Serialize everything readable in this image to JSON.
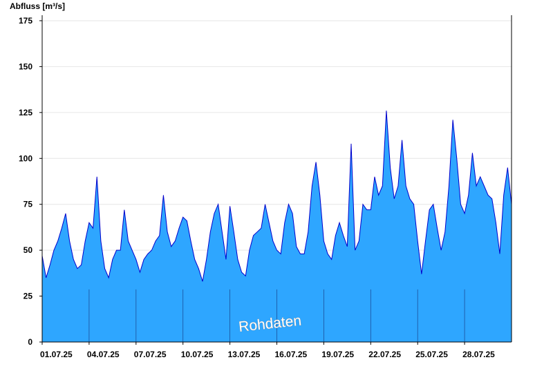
{
  "chart_data": {
    "type": "area",
    "y_label": "Abfluss [m³/s]",
    "annotation": "Rohdaten",
    "x": [
      1,
      1.25,
      1.5,
      1.75,
      2,
      2.25,
      2.5,
      2.75,
      3,
      3.25,
      3.5,
      3.75,
      4,
      4.25,
      4.5,
      4.75,
      5,
      5.25,
      5.5,
      5.75,
      6,
      6.25,
      6.5,
      6.75,
      7,
      7.25,
      7.5,
      7.75,
      8,
      8.25,
      8.5,
      8.75,
      9,
      9.25,
      9.5,
      9.75,
      10,
      10.25,
      10.5,
      10.75,
      11,
      11.25,
      11.5,
      11.75,
      12,
      12.25,
      12.5,
      12.75,
      13,
      13.25,
      13.5,
      13.75,
      14,
      14.25,
      14.5,
      14.75,
      15,
      15.25,
      15.5,
      15.75,
      16,
      16.25,
      16.5,
      16.75,
      17,
      17.25,
      17.5,
      17.75,
      18,
      18.25,
      18.5,
      18.75,
      19,
      19.25,
      19.5,
      19.75,
      20,
      20.25,
      20.5,
      20.75,
      21,
      21.25,
      21.5,
      21.75,
      22,
      22.25,
      22.5,
      22.75,
      23,
      23.25,
      23.5,
      23.75,
      24,
      24.25,
      24.5,
      24.75,
      25,
      25.25,
      25.5,
      25.75,
      26,
      26.25,
      26.5,
      26.75,
      27,
      27.25,
      27.5,
      27.75,
      28,
      28.25,
      28.5,
      28.75,
      29,
      29.25,
      29.5,
      29.75,
      30,
      30.25,
      30.5,
      30.75,
      31
    ],
    "series": [
      {
        "name": "Abfluss",
        "color": "#2ea6ff",
        "line_color": "#0000cc",
        "values": [
          47,
          35,
          42,
          50,
          55,
          62,
          70,
          55,
          45,
          40,
          42,
          55,
          65,
          62,
          90,
          55,
          40,
          35,
          45,
          50,
          50,
          72,
          55,
          50,
          45,
          38,
          45,
          48,
          50,
          55,
          58,
          80,
          60,
          52,
          55,
          62,
          68,
          66,
          55,
          45,
          40,
          33,
          45,
          60,
          70,
          75,
          60,
          45,
          74,
          60,
          45,
          38,
          36,
          50,
          58,
          60,
          62,
          75,
          65,
          55,
          50,
          48,
          65,
          75,
          70,
          52,
          48,
          48,
          60,
          85,
          98,
          80,
          55,
          48,
          45,
          58,
          65,
          58,
          52,
          108,
          50,
          55,
          75,
          72,
          72,
          90,
          80,
          85,
          126,
          95,
          78,
          85,
          110,
          85,
          78,
          75,
          55,
          37,
          55,
          72,
          75,
          62,
          50,
          60,
          85,
          121,
          100,
          75,
          70,
          80,
          103,
          85,
          90,
          85,
          80,
          78,
          65,
          48,
          80,
          95,
          75
        ]
      }
    ],
    "xlim": [
      1,
      31
    ],
    "xticks": [
      {
        "value": 1,
        "label": "01.07.25"
      },
      {
        "value": 4,
        "label": "04.07.25"
      },
      {
        "value": 7,
        "label": "07.07.25"
      },
      {
        "value": 10,
        "label": "10.07.25"
      },
      {
        "value": 13,
        "label": "13.07.25"
      },
      {
        "value": 16,
        "label": "16.07.25"
      },
      {
        "value": 19,
        "label": "19.07.25"
      },
      {
        "value": 22,
        "label": "22.07.25"
      },
      {
        "value": 25,
        "label": "25.07.25"
      },
      {
        "value": 28,
        "label": "28.07.25"
      }
    ],
    "ylim": [
      0,
      178
    ],
    "yticks": [
      0,
      25,
      50,
      75,
      100,
      125,
      150,
      175
    ],
    "grid": true
  }
}
